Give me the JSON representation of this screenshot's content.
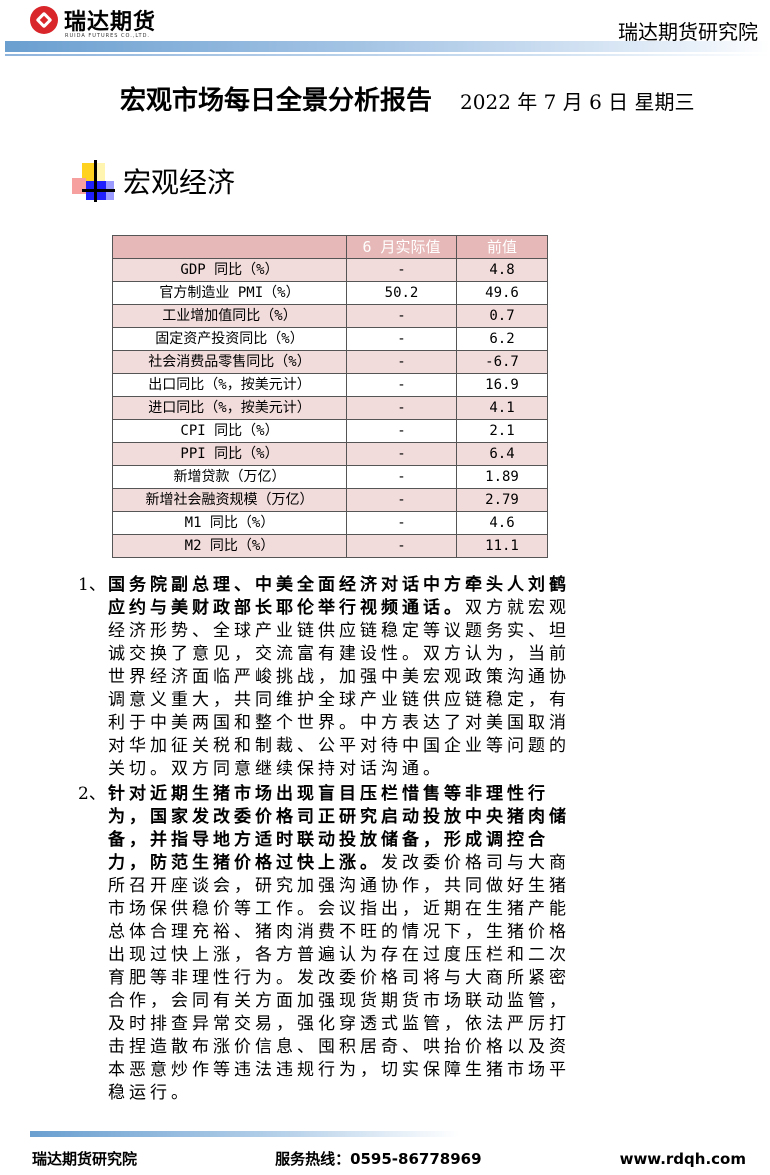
{
  "header": {
    "logo_text": "瑞达期货",
    "logo_sub": "RUIDA FUTURES CO.,LTD.",
    "org": "瑞达期货研究院"
  },
  "title": "宏观市场每日全景分析报告",
  "date": "2022 年 7 月 6 日  星期三",
  "section": "宏观经济",
  "table": {
    "headers": [
      "",
      "6 月实际值",
      "前值"
    ],
    "rows": [
      [
        "GDP 同比（%）",
        "-",
        "4.8"
      ],
      [
        "官方制造业 PMI（%）",
        "50.2",
        "49.6"
      ],
      [
        "工业增加值同比（%）",
        "-",
        "0.7"
      ],
      [
        "固定资产投资同比（%）",
        "-",
        "6.2"
      ],
      [
        "社会消费品零售同比（%）",
        "-",
        "-6.7"
      ],
      [
        "出口同比（%，按美元计）",
        "-",
        "16.9"
      ],
      [
        "进口同比（%，按美元计）",
        "-",
        "4.1"
      ],
      [
        "CPI 同比（%）",
        "-",
        "2.1"
      ],
      [
        "PPI 同比（%）",
        "-",
        "6.4"
      ],
      [
        "新增贷款（万亿）",
        "-",
        "1.89"
      ],
      [
        "新增社会融资规模（万亿）",
        "-",
        "2.79"
      ],
      [
        "M1 同比（%）",
        "-",
        "4.6"
      ],
      [
        "M2 同比（%）",
        "-",
        "11.1"
      ]
    ]
  },
  "items": [
    {
      "num": "1、",
      "lead": "国务院副总理、中美全面经济对话中方牵头人刘鹤应约与美财政部长耶伦举行视频通话。",
      "body": "双方就宏观经济形势、全球产业链供应链稳定等议题务实、坦诚交换了意见，交流富有建设性。双方认为，当前世界经济面临严峻挑战，加强中美宏观政策沟通协调意义重大，共同维护全球产业链供应链稳定，有利于中美两国和整个世界。中方表达了对美国取消对华加征关税和制裁、公平对待中国企业等问题的关切。双方同意继续保持对话沟通。"
    },
    {
      "num": "2、",
      "lead": "针对近期生猪市场出现盲目压栏惜售等非理性行为，国家发改委价格司正研究启动投放中央猪肉储备，并指导地方适时联动投放储备，形成调控合力，防范生猪价格过快上涨。",
      "body": "发改委价格司与大商所召开座谈会，研究加强沟通协作，共同做好生猪市场保供稳价等工作。会议指出，近期在生猪产能总体合理充裕、猪肉消费不旺的情况下，生猪价格出现过快上涨，各方普遍认为存在过度压栏和二次育肥等非理性行为。发改委价格司将与大商所紧密合作，会同有关方面加强现货期货市场联动监管，及时排查异常交易，强化穿透式监管，依法严厉打击捏造散布涨价信息、囤积居奇、哄抬价格以及资本恶意炒作等违法违规行为，切实保障生猪市场平稳运行。"
    }
  ],
  "footer": {
    "org": "瑞达期货研究院",
    "hotline": "服务热线：0595-86778969",
    "site": "www.rdqh.com"
  },
  "colors": {
    "header_row": "#e6b8b7",
    "alt_row": "#f2dcdb",
    "brand_red": "#d9262b",
    "bar_blue": "#6a9fd0"
  }
}
